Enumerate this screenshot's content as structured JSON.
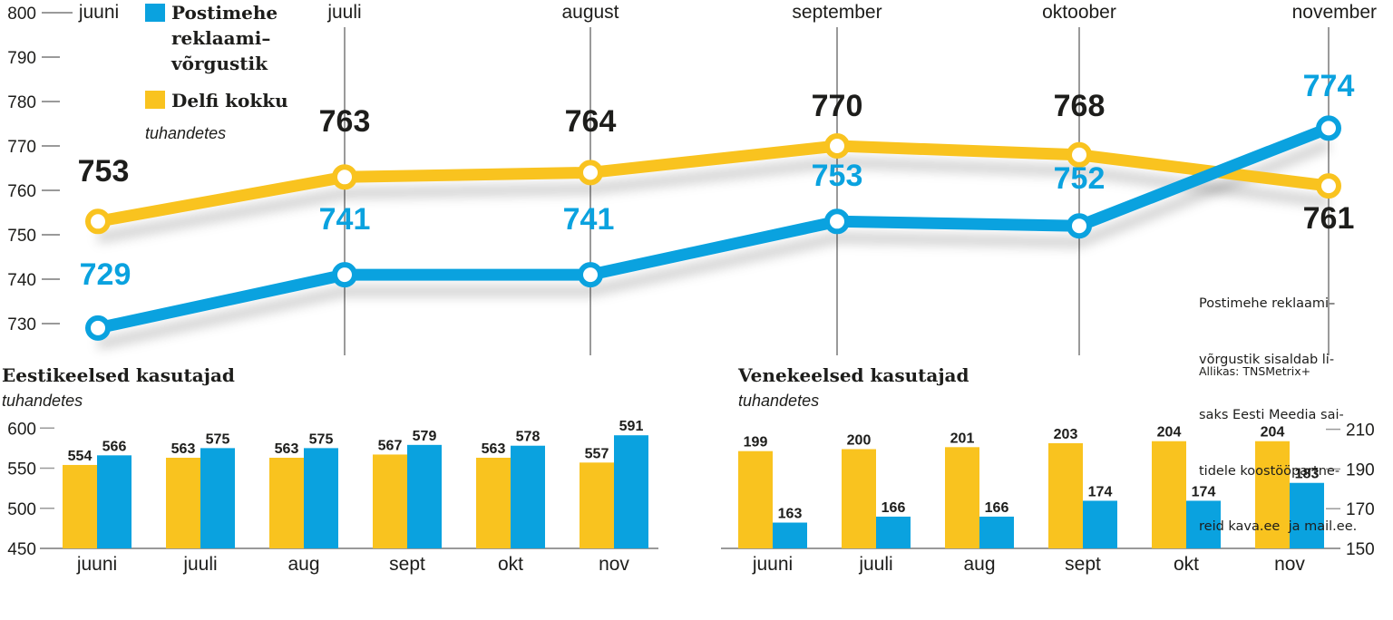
{
  "colors": {
    "blue": "#0aa2df",
    "yellow": "#f9c31f",
    "dark": "#1d1d1b",
    "grid": "#9a9a9a"
  },
  "chart_data": [
    {
      "type": "line",
      "subtitle": "tuhandetes",
      "categories": [
        "juuni",
        "juuli",
        "august",
        "september",
        "oktoober",
        "november"
      ],
      "ylim": [
        730,
        800
      ],
      "yticks": [
        730,
        740,
        750,
        760,
        770,
        780,
        790,
        800
      ],
      "series": [
        {
          "name": "Postimehe reklaami–võrgustik",
          "name_lines": [
            "Postimehe",
            "reklaami–",
            "võrgustik"
          ],
          "color": "#0aa2df",
          "values": [
            729,
            741,
            741,
            753,
            752,
            774
          ]
        },
        {
          "name": "Delfi kokku",
          "name_lines": [
            "Delfi kokku"
          ],
          "color": "#f9c31f",
          "values": [
            753,
            763,
            764,
            770,
            768,
            761
          ]
        }
      ],
      "legend": "top-left",
      "grid": false
    },
    {
      "type": "bar",
      "title": "Eestikeelsed kasutajad",
      "subtitle": "tuhandetes",
      "categories": [
        "juuni",
        "juuli",
        "aug",
        "sept",
        "okt",
        "nov"
      ],
      "ylim": [
        450,
        600
      ],
      "yticks": [
        450,
        500,
        550,
        600
      ],
      "series": [
        {
          "color": "#f9c31f",
          "values": [
            554,
            563,
            563,
            567,
            563,
            557
          ]
        },
        {
          "color": "#0aa2df",
          "values": [
            566,
            575,
            575,
            579,
            578,
            591
          ]
        }
      ]
    },
    {
      "type": "bar",
      "title": "Venekeelsed kasutajad",
      "subtitle": "tuhandetes",
      "categories": [
        "juuni",
        "juuli",
        "aug",
        "sept",
        "okt",
        "nov"
      ],
      "ylim": [
        150,
        210
      ],
      "yticks": [
        150,
        170,
        190,
        210
      ],
      "series": [
        {
          "color": "#f9c31f",
          "values": [
            199,
            200,
            201,
            203,
            204,
            204
          ]
        },
        {
          "color": "#0aa2df",
          "values": [
            163,
            166,
            166,
            174,
            174,
            183
          ]
        }
      ]
    }
  ],
  "note_lines": [
    "Postimehe reklaami–",
    "võrgustik sisaldab li-",
    "saks Eesti Meedia sai-",
    "tidele koostööpartne-",
    "reid kava.ee  ja mail.ee."
  ],
  "source": "Allikas: TNSMetrix+"
}
